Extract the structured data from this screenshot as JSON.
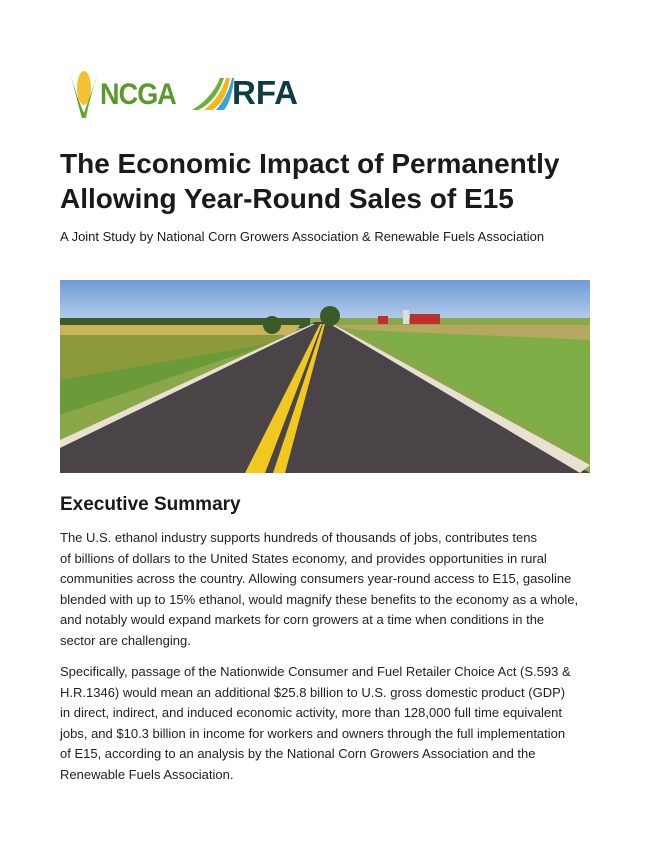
{
  "logos": {
    "ncga": "NCGA",
    "rfa": "RFA"
  },
  "title": "The Economic Impact of Permanently Allowing Year-Round Sales of E15",
  "subtitle": "A Joint Study by National Corn Growers Association & Renewable Fuels Association",
  "section_heading": "Executive Summary",
  "paragraphs": [
    {
      "lines": [
        "The U.S. ethanol industry supports hundreds of thousands of jobs, contributes tens",
        "of billions of dollars to the United States economy, and provides opportunities in rural",
        "communities across the country. Allowing consumers year-round access to E15, gasoline",
        "blended with up to 15% ethanol, would magnify these benefits to the economy as a whole,",
        "and notably would expand markets for corn growers at a time when conditions in the",
        "sector are challenging."
      ]
    },
    {
      "lines": [
        "Specifically, passage of the Nationwide Consumer and Fuel Retailer Choice Act (S.593 &",
        "H.R.1346) would mean an additional $25.8 billion to U.S. gross domestic product (GDP)",
        "in direct, indirect, and induced economic activity, more than 128,000  full time equivalent",
        "jobs, and $10.3 billion in income for workers and owners through the full implementation",
        "of E15, according to an analysis by the National Corn Growers Association and the",
        "Renewable Fuels Association."
      ]
    }
  ]
}
